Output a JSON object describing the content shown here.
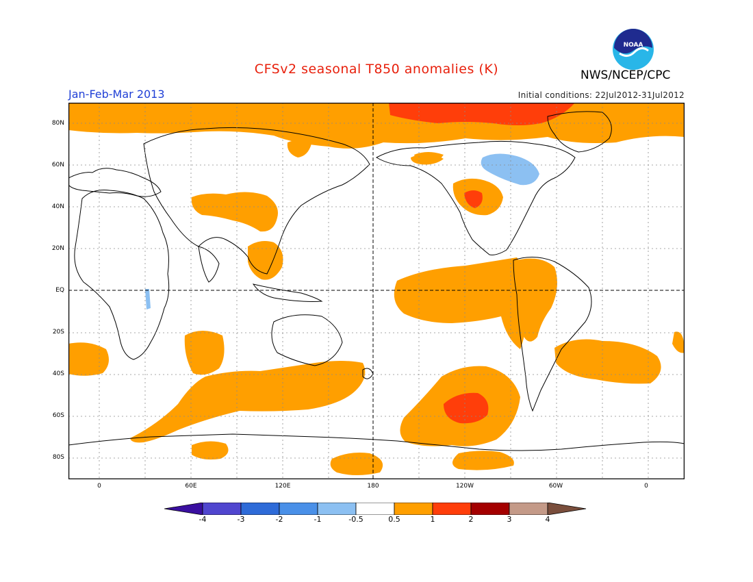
{
  "title": "CFSv2 seasonal T850 anomalies (K)",
  "agency": "NWS/NCEP/CPC",
  "logo_text": "NOAA",
  "period": "Jan-Feb-Mar 2013",
  "initial_conditions": "Initial conditions: 22Jul2012-31Jul2012",
  "latitude_labels": [
    "80N",
    "60N",
    "40N",
    "20N",
    "EQ",
    "20S",
    "40S",
    "60S",
    "80S"
  ],
  "longitude_labels": [
    "0",
    "60E",
    "120E",
    "180",
    "120W",
    "60W",
    "0"
  ],
  "colorbar": {
    "labels": [
      "-4",
      "-3",
      "-2",
      "-1",
      "-0.5",
      "0.5",
      "1",
      "2",
      "3",
      "4"
    ],
    "colors": [
      "#3a0fa0",
      "#5046cf",
      "#2e6bd8",
      "#4a90e8",
      "#8cc0f2",
      "#ffffff",
      "#ff9f00",
      "#ff3e0a",
      "#a40000",
      "#c49a88",
      "#7a4e3c"
    ]
  },
  "colors": {
    "title": "#e8200c",
    "period": "#1f3fd6",
    "weak_warm": "#ff9f00",
    "warm": "#ff3e0a",
    "weak_cold": "#8cc0f2",
    "cold": "#4a90e8"
  }
}
